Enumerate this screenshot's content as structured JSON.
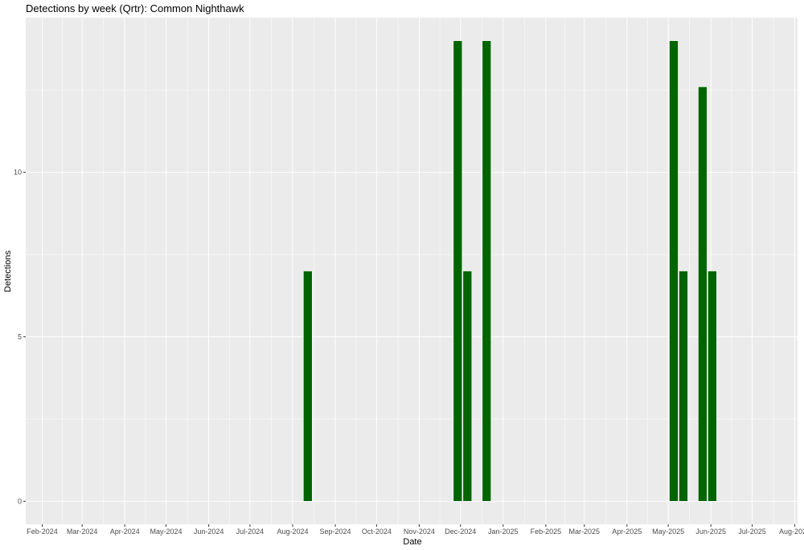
{
  "chart_data": {
    "type": "bar",
    "title": "Detections by week (Qrtr): Common Nighthawk",
    "xlabel": "Date",
    "ylabel": "Detections",
    "x_axis": {
      "type": "date",
      "range": [
        "2024-01-20",
        "2025-08-03"
      ],
      "ticks": [
        {
          "date": "2024-02-01",
          "label": "Feb-2024"
        },
        {
          "date": "2024-03-01",
          "label": "Mar-2024"
        },
        {
          "date": "2024-04-01",
          "label": "Apr-2024"
        },
        {
          "date": "2024-05-01",
          "label": "May-2024"
        },
        {
          "date": "2024-06-01",
          "label": "Jun-2024"
        },
        {
          "date": "2024-07-01",
          "label": "Jul-2024"
        },
        {
          "date": "2024-08-01",
          "label": "Aug-2024"
        },
        {
          "date": "2024-09-01",
          "label": "Sep-2024"
        },
        {
          "date": "2024-10-01",
          "label": "Oct-2024"
        },
        {
          "date": "2024-11-01",
          "label": "Nov-2024"
        },
        {
          "date": "2024-12-01",
          "label": "Dec-2024"
        },
        {
          "date": "2025-01-01",
          "label": "Jan-2025"
        },
        {
          "date": "2025-02-01",
          "label": "Feb-2025"
        },
        {
          "date": "2025-03-01",
          "label": "Mar-2025"
        },
        {
          "date": "2025-04-01",
          "label": "Apr-2025"
        },
        {
          "date": "2025-05-01",
          "label": "May-2025"
        },
        {
          "date": "2025-06-01",
          "label": "Jun-2025"
        },
        {
          "date": "2025-07-01",
          "label": "Jul-2025"
        },
        {
          "date": "2025-08-01",
          "label": "Aug-2025"
        }
      ]
    },
    "y_axis": {
      "range": [
        -0.7,
        14.7
      ],
      "ticks": [
        0,
        5,
        10
      ]
    },
    "grid": true,
    "legend": "none",
    "bar_color": "#006400",
    "background": "#ebebeb",
    "grid_color": "#ffffff",
    "series": [
      {
        "points": [
          {
            "x": "2024-08-12",
            "y": 7
          },
          {
            "x": "2024-11-29",
            "y": 14
          },
          {
            "x": "2024-12-06",
            "y": 7
          },
          {
            "x": "2024-12-20",
            "y": 14
          },
          {
            "x": "2025-05-05",
            "y": 14
          },
          {
            "x": "2025-05-12",
            "y": 7
          },
          {
            "x": "2025-05-26",
            "y": 12.6
          },
          {
            "x": "2025-06-02",
            "y": 7
          }
        ]
      }
    ]
  }
}
